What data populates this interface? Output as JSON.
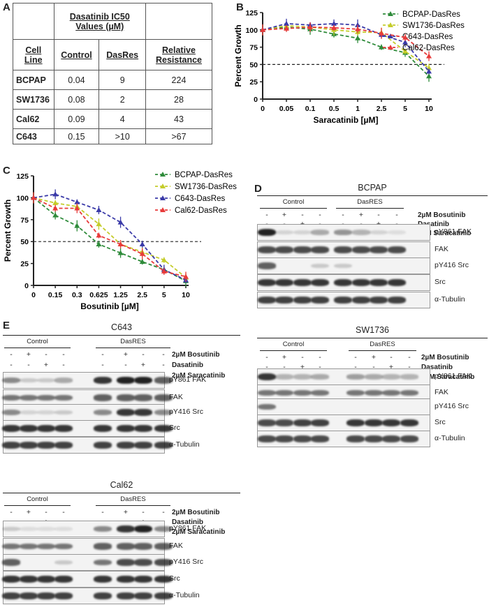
{
  "panels": {
    "A": "A",
    "B": "B",
    "C": "C",
    "D": "D",
    "E": "E"
  },
  "table": {
    "header_ic50": "Dasatinib IC50 Values (µM)",
    "col_cell_line": "Cell Line",
    "col_control": "Control",
    "col_dasres": "DasRes",
    "col_relative": "Relative Resistance",
    "rows": [
      {
        "cell": "BCPAP",
        "control": "0.04",
        "dasres": "9",
        "relative": "224"
      },
      {
        "cell": "SW1736",
        "control": "0.08",
        "dasres": "2",
        "relative": "28"
      },
      {
        "cell": "Cal62",
        "control": "0.09",
        "dasres": "4",
        "relative": "43"
      },
      {
        "cell": "C643",
        "control": "0.15",
        "dasres": ">10",
        "relative": ">67"
      }
    ]
  },
  "chart_data": [
    {
      "type": "line",
      "panel": "B",
      "xlabel": "Saracatinib [µM]",
      "ylabel": "Percent Growth",
      "categories": [
        "0",
        "0.05",
        "0.1",
        "0.5",
        "1",
        "2.5",
        "5",
        "10"
      ],
      "ylim": [
        0,
        125
      ],
      "yticks": [
        0,
        25,
        50,
        75,
        100,
        125
      ],
      "reference_line": 50,
      "legend_position": "right",
      "series": [
        {
          "name": "BCPAP-DasRes",
          "color": "#2e8b3a",
          "values": [
            100,
            104,
            101,
            94,
            88,
            75,
            67,
            33
          ]
        },
        {
          "name": "SW1736-DasRes",
          "color": "#c4cc2a",
          "values": [
            100,
            106,
            104,
            100,
            97,
            96,
            69,
            45
          ]
        },
        {
          "name": "C643-DasRes",
          "color": "#3a3aa8",
          "values": [
            100,
            109,
            107,
            109,
            107,
            93,
            82,
            40
          ]
        },
        {
          "name": "Cal62-DasRes",
          "color": "#e83a3a",
          "values": [
            100,
            102,
            104,
            103,
            101,
            95,
            89,
            62
          ]
        }
      ]
    },
    {
      "type": "line",
      "panel": "C",
      "xlabel": "Bosutinib [µM]",
      "ylabel": "Percent Growth",
      "categories": [
        "0",
        "0.15",
        "0.3",
        "0.625",
        "1.25",
        "2.5",
        "5",
        "10"
      ],
      "ylim": [
        0,
        125
      ],
      "yticks": [
        0,
        25,
        50,
        75,
        100,
        125
      ],
      "reference_line": 50,
      "legend_position": "top-right",
      "series": [
        {
          "name": "BCPAP-DasRes",
          "color": "#2e8b3a",
          "values": [
            100,
            80,
            68,
            47,
            37,
            27,
            18,
            5
          ]
        },
        {
          "name": "SW1736-DasRes",
          "color": "#c4cc2a",
          "values": [
            100,
            94,
            90,
            70,
            47,
            38,
            29,
            9
          ]
        },
        {
          "name": "C643-DasRes",
          "color": "#3a3aa8",
          "values": [
            100,
            104,
            95,
            86,
            72,
            47,
            18,
            6
          ]
        },
        {
          "name": "Cal62-DasRes",
          "color": "#e83a3a",
          "values": [
            100,
            88,
            88,
            57,
            47,
            36,
            16,
            10
          ]
        }
      ]
    }
  ],
  "blots": {
    "control": "Control",
    "dasres": "DasRES",
    "treatments": [
      "2µM Bosutinib",
      "Dasatinib",
      "2µM Saracatinib"
    ],
    "signs": [
      [
        "-",
        "+",
        "-",
        "-",
        "-",
        "+",
        "-",
        "-"
      ],
      [
        "-",
        "-",
        "+",
        "-",
        "-",
        "-",
        "+",
        "-"
      ],
      [
        "-",
        "-",
        "-",
        "+",
        "-",
        "-",
        "-",
        "+"
      ]
    ],
    "rows": [
      "pY861 FAK",
      "FAK",
      "pY416 Src",
      "Src",
      "α-Tubulin"
    ],
    "bcpap_title": "BCPAP",
    "sw1736_title": "SW1736",
    "c643_title": "C643",
    "cal62_title": "Cal62",
    "band_colors": {
      "band": "#222222",
      "background": "#f3f3f3"
    }
  }
}
